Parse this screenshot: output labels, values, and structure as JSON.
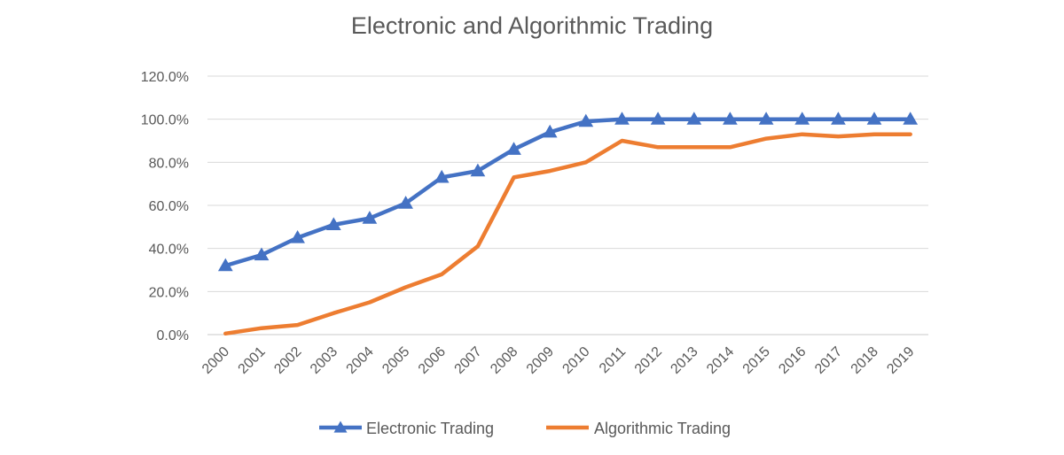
{
  "chart_data": {
    "type": "line",
    "title": "Electronic and Algorithmic Trading",
    "xlabel": "",
    "ylabel": "",
    "x": [
      "2000",
      "2001",
      "2002",
      "2003",
      "2004",
      "2005",
      "2006",
      "2007",
      "2008",
      "2009",
      "2010",
      "2011",
      "2012",
      "2013",
      "2014",
      "2015",
      "2016",
      "2017",
      "2018",
      "2019"
    ],
    "y_ticks": [
      "0.0%",
      "20.0%",
      "40.0%",
      "60.0%",
      "80.0%",
      "100.0%",
      "120.0%"
    ],
    "ylim": [
      0,
      120
    ],
    "grid": true,
    "legend_position": "bottom",
    "series": [
      {
        "name": "Electronic Trading",
        "color": "#4472c4",
        "marker": "triangle",
        "values": [
          32,
          37,
          45,
          51,
          54,
          61,
          73,
          76,
          86,
          94,
          99,
          100,
          100,
          100,
          100,
          100,
          100,
          100,
          100,
          100
        ]
      },
      {
        "name": "Algorithmic Trading",
        "color": "#ed7d31",
        "marker": "none",
        "values": [
          0.5,
          3,
          4.5,
          10,
          15,
          22,
          28,
          41,
          73,
          76,
          80,
          90,
          87,
          87,
          87,
          91,
          93,
          92,
          93,
          93
        ]
      }
    ]
  }
}
